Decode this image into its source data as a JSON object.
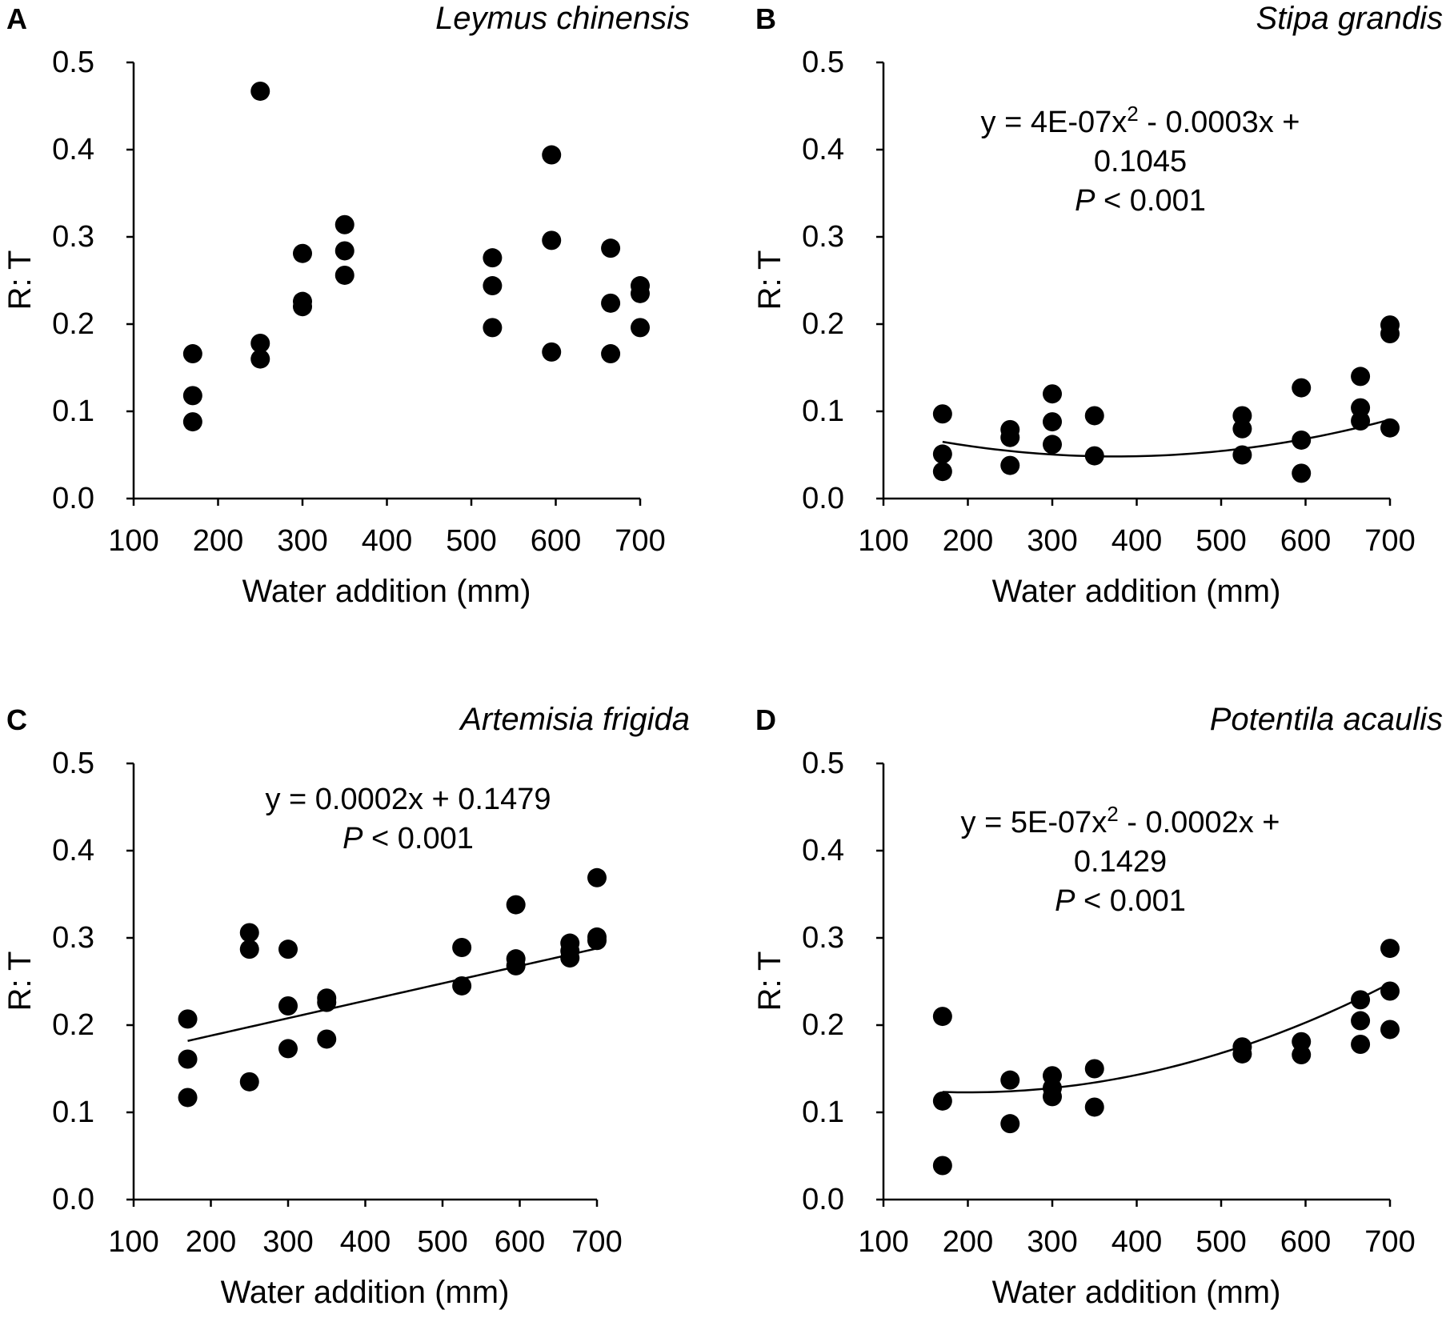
{
  "chart_data": [
    {
      "type": "scatter",
      "panel": "A",
      "species": "Leymus chinensis",
      "xlabel": "Water addition (mm)",
      "ylabel": "R: T",
      "xlim": [
        100,
        700
      ],
      "ylim": [
        0.0,
        0.5
      ],
      "x_ticks": [
        "100",
        "200",
        "300",
        "400",
        "500",
        "600",
        "700"
      ],
      "y_ticks": [
        "0.0",
        "0.1",
        "0.2",
        "0.3",
        "0.4",
        "0.5"
      ],
      "points": [
        [
          170,
          0.166
        ],
        [
          170,
          0.118
        ],
        [
          170,
          0.088
        ],
        [
          250,
          0.467
        ],
        [
          250,
          0.178
        ],
        [
          250,
          0.16
        ],
        [
          300,
          0.281
        ],
        [
          300,
          0.226
        ],
        [
          300,
          0.22
        ],
        [
          350,
          0.314
        ],
        [
          350,
          0.284
        ],
        [
          350,
          0.256
        ],
        [
          525,
          0.276
        ],
        [
          525,
          0.244
        ],
        [
          525,
          0.196
        ],
        [
          595,
          0.394
        ],
        [
          595,
          0.296
        ],
        [
          595,
          0.168
        ],
        [
          665,
          0.287
        ],
        [
          665,
          0.224
        ],
        [
          665,
          0.166
        ],
        [
          700,
          0.244
        ],
        [
          700,
          0.235
        ],
        [
          700,
          0.196
        ]
      ],
      "equation": null,
      "p_value": null,
      "fit": null
    },
    {
      "type": "scatter",
      "panel": "B",
      "species": "Stipa grandis",
      "xlabel": "Water addition (mm)",
      "ylabel": "R: T",
      "xlim": [
        100,
        700
      ],
      "ylim": [
        0.0,
        0.5
      ],
      "x_ticks": [
        "100",
        "200",
        "300",
        "400",
        "500",
        "600",
        "700"
      ],
      "y_ticks": [
        "0.0",
        "0.1",
        "0.2",
        "0.3",
        "0.4",
        "0.5"
      ],
      "points": [
        [
          170,
          0.097
        ],
        [
          170,
          0.051
        ],
        [
          170,
          0.031
        ],
        [
          250,
          0.079
        ],
        [
          250,
          0.07
        ],
        [
          250,
          0.038
        ],
        [
          300,
          0.12
        ],
        [
          300,
          0.088
        ],
        [
          300,
          0.062
        ],
        [
          350,
          0.095
        ],
        [
          350,
          0.049
        ],
        [
          525,
          0.095
        ],
        [
          525,
          0.08
        ],
        [
          525,
          0.05
        ],
        [
          595,
          0.127
        ],
        [
          595,
          0.067
        ],
        [
          595,
          0.029
        ],
        [
          665,
          0.14
        ],
        [
          665,
          0.104
        ],
        [
          665,
          0.089
        ],
        [
          700,
          0.199
        ],
        [
          700,
          0.189
        ],
        [
          700,
          0.081
        ]
      ],
      "equation_line1": "y = 4E-07x",
      "equation_sup": "2",
      "equation_line1_rest": " - 0.0003x +",
      "equation_line2": "0.1045",
      "p_italic": "P",
      "p_rest": " < 0.001",
      "fit": {
        "kind": "poly2",
        "a": 4e-07,
        "b": -0.0003,
        "c": 0.1045,
        "x_range": [
          170,
          700
        ]
      }
    },
    {
      "type": "scatter",
      "panel": "C",
      "species": "Artemisia frigida",
      "xlabel": "Water addition (mm)",
      "ylabel": "R: T",
      "xlim": [
        100,
        700
      ],
      "ylim": [
        0.0,
        0.5
      ],
      "x_ticks": [
        "100",
        "200",
        "300",
        "400",
        "500",
        "600",
        "700"
      ],
      "y_ticks": [
        "0.0",
        "0.1",
        "0.2",
        "0.3",
        "0.4",
        "0.5"
      ],
      "points": [
        [
          170,
          0.207
        ],
        [
          170,
          0.161
        ],
        [
          170,
          0.117
        ],
        [
          250,
          0.306
        ],
        [
          250,
          0.287
        ],
        [
          250,
          0.135
        ],
        [
          300,
          0.287
        ],
        [
          300,
          0.222
        ],
        [
          300,
          0.173
        ],
        [
          350,
          0.231
        ],
        [
          350,
          0.226
        ],
        [
          350,
          0.184
        ],
        [
          525,
          0.289
        ],
        [
          525,
          0.245
        ],
        [
          595,
          0.338
        ],
        [
          595,
          0.276
        ],
        [
          595,
          0.268
        ],
        [
          665,
          0.294
        ],
        [
          665,
          0.285
        ],
        [
          665,
          0.277
        ],
        [
          700,
          0.369
        ],
        [
          700,
          0.301
        ],
        [
          700,
          0.297
        ]
      ],
      "equation_line1": "y = 0.0002x + 0.1479",
      "p_italic": "P",
      "p_rest": " < 0.001",
      "fit": {
        "kind": "poly2",
        "a": 0,
        "b": 0.0002,
        "c": 0.1479,
        "x_range": [
          170,
          700
        ]
      }
    },
    {
      "type": "scatter",
      "panel": "D",
      "species": "Potentila acaulis",
      "xlabel": "Water addition (mm)",
      "ylabel": "R: T",
      "xlim": [
        100,
        700
      ],
      "ylim": [
        0.0,
        0.5
      ],
      "x_ticks": [
        "100",
        "200",
        "300",
        "400",
        "500",
        "600",
        "700"
      ],
      "y_ticks": [
        "0.0",
        "0.1",
        "0.2",
        "0.3",
        "0.4",
        "0.5"
      ],
      "points": [
        [
          170,
          0.21
        ],
        [
          170,
          0.113
        ],
        [
          170,
          0.039
        ],
        [
          250,
          0.137
        ],
        [
          250,
          0.087
        ],
        [
          300,
          0.142
        ],
        [
          300,
          0.128
        ],
        [
          300,
          0.118
        ],
        [
          350,
          0.15
        ],
        [
          350,
          0.106
        ],
        [
          525,
          0.175
        ],
        [
          525,
          0.167
        ],
        [
          595,
          0.181
        ],
        [
          595,
          0.166
        ],
        [
          665,
          0.229
        ],
        [
          665,
          0.205
        ],
        [
          665,
          0.178
        ],
        [
          700,
          0.288
        ],
        [
          700,
          0.239
        ],
        [
          700,
          0.195
        ]
      ],
      "equation_line1": "y = 5E-07x",
      "equation_sup": "2",
      "equation_line1_rest": " - 0.0002x +",
      "equation_line2": "0.1429",
      "p_italic": "P",
      "p_rest": " < 0.001",
      "fit": {
        "kind": "poly2",
        "a": 5e-07,
        "b": -0.0002,
        "c": 0.1429,
        "x_range": [
          170,
          700
        ]
      }
    }
  ]
}
